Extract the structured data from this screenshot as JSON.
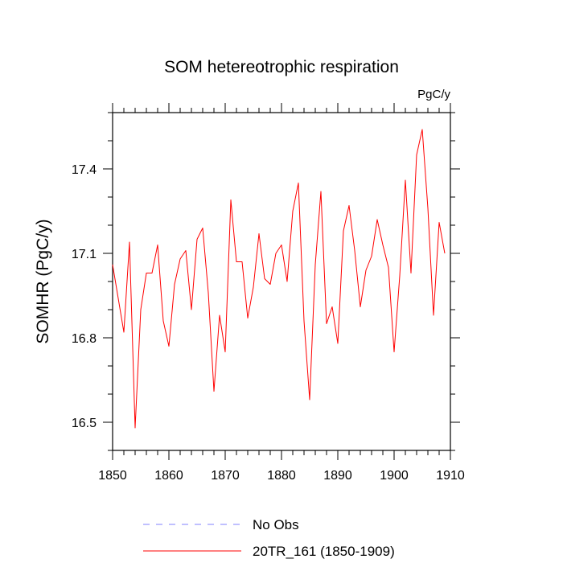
{
  "chart_data": {
    "type": "line",
    "title": "SOM hetereotrophic respiration",
    "units_label": "PgC/y",
    "xlabel": "",
    "ylabel": "SOMHR  (PgC/y)",
    "xlim": [
      1850,
      1910
    ],
    "ylim": [
      16.4,
      17.6
    ],
    "x_ticks": [
      1850,
      1860,
      1870,
      1880,
      1890,
      1900,
      1910
    ],
    "x_tick_labels": [
      "1850",
      "1860",
      "1870",
      "1880",
      "1890",
      "1900",
      "1910"
    ],
    "y_ticks": [
      16.5,
      16.8,
      17.1,
      17.4
    ],
    "y_tick_labels": [
      "16.5",
      "16.8",
      "17.1",
      "17.4"
    ],
    "x_minor_step": 2,
    "y_minor_step": 0.1,
    "grid": false,
    "colors": {
      "series": "#ff0000",
      "obs": "#8080ff",
      "axis": "#000000"
    },
    "legend": [
      {
        "name": "No Obs",
        "style": "dashed",
        "color": "#8080ff"
      },
      {
        "name": "20TR_161 (1850-1909)",
        "style": "solid",
        "color": "#ff0000"
      }
    ],
    "series": [
      {
        "name": "20TR_161 (1850-1909)",
        "x": [
          1850,
          1851,
          1852,
          1853,
          1854,
          1855,
          1856,
          1857,
          1858,
          1859,
          1860,
          1861,
          1862,
          1863,
          1864,
          1865,
          1866,
          1867,
          1868,
          1869,
          1870,
          1871,
          1872,
          1873,
          1874,
          1875,
          1876,
          1877,
          1878,
          1879,
          1880,
          1881,
          1882,
          1883,
          1884,
          1885,
          1886,
          1887,
          1888,
          1889,
          1890,
          1891,
          1892,
          1893,
          1894,
          1895,
          1896,
          1897,
          1898,
          1899,
          1900,
          1901,
          1902,
          1903,
          1904,
          1905,
          1906,
          1907,
          1908,
          1909
        ],
        "values": [
          17.06,
          16.94,
          16.82,
          17.14,
          16.48,
          16.9,
          17.03,
          17.03,
          17.13,
          16.86,
          16.77,
          16.99,
          17.08,
          17.11,
          16.9,
          17.15,
          17.19,
          16.96,
          16.61,
          16.88,
          16.75,
          17.29,
          17.07,
          17.07,
          16.87,
          16.98,
          17.17,
          17.01,
          16.99,
          17.1,
          17.13,
          17.0,
          17.25,
          17.35,
          16.86,
          16.58,
          17.06,
          17.32,
          16.85,
          16.91,
          16.78,
          17.18,
          17.27,
          17.11,
          16.91,
          17.04,
          17.09,
          17.22,
          17.13,
          17.05,
          16.75,
          17.02,
          17.36,
          17.03,
          17.45,
          17.54,
          17.26,
          16.88,
          17.21,
          17.1
        ]
      }
    ]
  }
}
